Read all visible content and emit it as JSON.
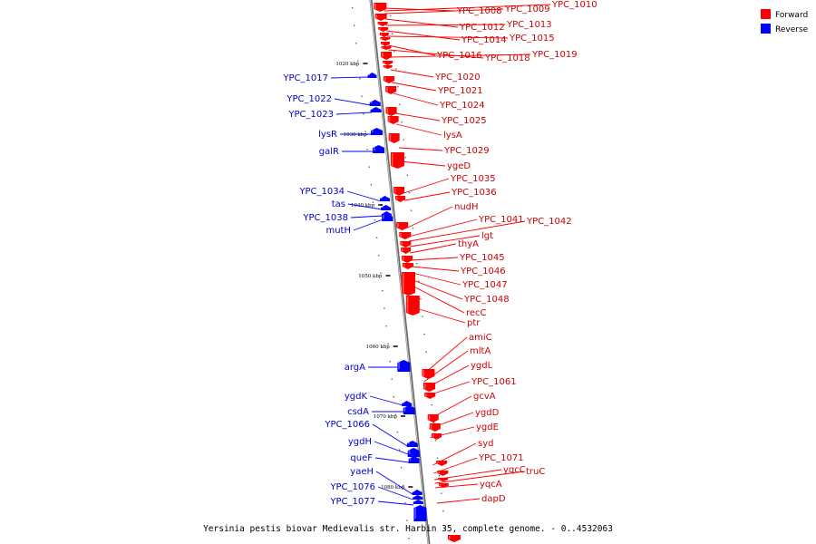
{
  "caption": "Yersinia pestis biovar Medievalis str. Harbin 35, complete genome. - 0..4532063",
  "colors": {
    "forward": "#ff0000",
    "reverse": "#0000ff",
    "axis": "#888888"
  },
  "legend": [
    {
      "label": "Forward",
      "color": "#ff0000"
    },
    {
      "label": "Reverse",
      "color": "#0000ff"
    }
  ],
  "ticks": [
    "1020 kbp",
    "1030 kbp",
    "1040 kbp",
    "1050 kbp",
    "1060 kbp",
    "1070 kbp",
    "1080 kbp"
  ],
  "forward_genes": [
    "YPC_1008",
    "YPC_1009",
    "YPC_1010",
    "YPC_1012",
    "YPC_1013",
    "YPC_1014",
    "YPC_1015",
    "YPC_1016",
    "YPC_1018",
    "YPC_1019",
    "YPC_1020",
    "YPC_1021",
    "YPC_1024",
    "YPC_1025",
    "lysA",
    "YPC_1029",
    "ygeD",
    "YPC_1035",
    "YPC_1036",
    "nudH",
    "YPC_1041",
    "YPC_1042",
    "lgt",
    "thyA",
    "YPC_1045",
    "YPC_1046",
    "YPC_1047",
    "YPC_1048",
    "recC",
    "ptr",
    "amiC",
    "mltA",
    "ygdL",
    "YPC_1061",
    "gcvA",
    "ygdD",
    "ygdE",
    "syd",
    "YPC_1071",
    "yqcC",
    "truC",
    "yqcA",
    "dapD"
  ],
  "reverse_genes": [
    "YPC_1017",
    "YPC_1022",
    "YPC_1023",
    "lysR",
    "galR",
    "YPC_1034",
    "tas",
    "YPC_1038",
    "mutH",
    "argA",
    "ygdK",
    "csdA",
    "YPC_1066",
    "ygdH",
    "queF",
    "yaeH",
    "YPC_1076",
    "YPC_1077"
  ]
}
